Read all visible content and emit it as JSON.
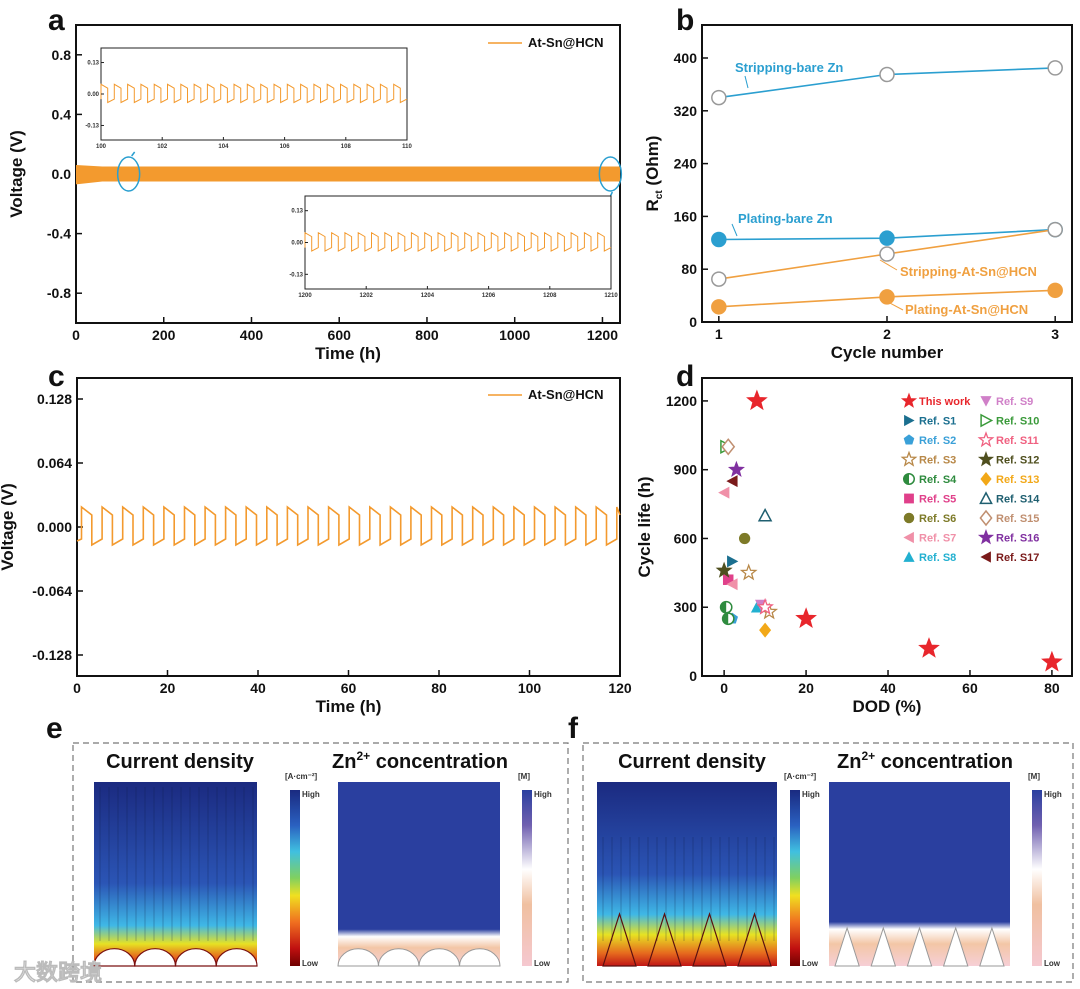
{
  "panel_labels": {
    "a": "a",
    "b": "b",
    "c": "c",
    "d": "d",
    "e": "e",
    "f": "f"
  },
  "watermark": "大数跨境",
  "chart_data": [
    {
      "id": "a",
      "type": "line",
      "xlabel": "Time (h)",
      "ylabel": "Voltage (V)",
      "xlim": [
        0,
        1240
      ],
      "ylim": [
        -1.0,
        1.0
      ],
      "xticks": [
        0,
        200,
        400,
        600,
        800,
        1000,
        1200
      ],
      "xtick_labels": [
        "0",
        "200",
        "400",
        "600",
        "800",
        "1000",
        "1200"
      ],
      "yticks": [
        -0.8,
        -0.4,
        0.0,
        0.4,
        0.8
      ],
      "ytick_labels": [
        "-0.8",
        "-0.4",
        "0.0",
        "0.4",
        "0.8"
      ],
      "legend": "At-Sn@HCN",
      "legend_position": "top-right",
      "series_color": "#f39a2e",
      "highlight_color": "#2a9fd0",
      "voltage_band": [
        -0.05,
        0.05
      ],
      "highlight_times": [
        120,
        1218
      ],
      "insets": [
        {
          "xlim": [
            100,
            110
          ],
          "ylim": [
            -0.19,
            0.19
          ],
          "xticks": [
            100,
            102,
            104,
            106,
            108,
            110
          ],
          "xtick_labels": [
            "100",
            "102",
            "104",
            "106",
            "108",
            "110"
          ],
          "yticks": [
            0.13,
            0.0,
            -0.13
          ],
          "ytick_labels": [
            "0.13",
            "0.00",
            "-0.13"
          ],
          "cycles": 23,
          "high": 0.04,
          "low": -0.035
        },
        {
          "xlim": [
            1200,
            1210
          ],
          "ylim": [
            -0.19,
            0.19
          ],
          "xticks": [
            1200,
            1202,
            1204,
            1206,
            1208,
            1210
          ],
          "xtick_labels": [
            "1200",
            "1202",
            "1204",
            "1206",
            "1208",
            "1210"
          ],
          "yticks": [
            0.13,
            0.0,
            -0.13
          ],
          "ytick_labels": [
            "0.13",
            "0.00",
            "-0.13"
          ],
          "cycles": 23,
          "high": 0.04,
          "low": -0.035
        }
      ]
    },
    {
      "id": "b",
      "type": "line",
      "xlabel": "Cycle number",
      "ylabel_main": "R",
      "ylabel_sub": "ct",
      "ylabel_unit": " (Ohm)",
      "xlim": [
        0.9,
        3.1
      ],
      "ylim": [
        0,
        450
      ],
      "xticks": [
        1,
        2,
        3
      ],
      "xtick_labels": [
        "1",
        "2",
        "3"
      ],
      "yticks": [
        0,
        80,
        160,
        240,
        320,
        400
      ],
      "ytick_labels": [
        "0",
        "80",
        "160",
        "240",
        "320",
        "400"
      ],
      "x": [
        1,
        2,
        3
      ],
      "series": [
        {
          "name": "Stripping-bare Zn",
          "values": [
            340,
            375,
            385
          ],
          "color": "#2b9fd0",
          "filled": false
        },
        {
          "name": "Plating-bare Zn",
          "values": [
            125,
            127,
            140
          ],
          "color": "#2b9fd0",
          "filled": true
        },
        {
          "name": "Stripping-At-Sn@HCN",
          "values": [
            65,
            103,
            140
          ],
          "color": "#f0a040",
          "filled": false
        },
        {
          "name": "Plating-At-Sn@HCN",
          "values": [
            23,
            38,
            48
          ],
          "color": "#f0a040",
          "filled": true
        }
      ]
    },
    {
      "id": "c",
      "type": "line",
      "xlabel": "Time (h)",
      "ylabel": "Voltage (V)",
      "xlim": [
        0,
        120
      ],
      "ylim": [
        -0.149,
        0.149
      ],
      "xticks": [
        0,
        20,
        40,
        60,
        80,
        100,
        120
      ],
      "xtick_labels": [
        "0",
        "20",
        "40",
        "60",
        "80",
        "100",
        "120"
      ],
      "yticks": [
        -0.128,
        -0.064,
        0.0,
        0.064,
        0.128
      ],
      "ytick_labels": [
        "-0.128",
        "-0.064",
        "0.000",
        "0.064",
        "0.128"
      ],
      "legend": "At-Sn@HCN",
      "legend_position": "top-right",
      "series_color": "#f39a2e",
      "start": 1,
      "period": 4.55,
      "high": 0.02,
      "sag_high": 0.008,
      "low": -0.018,
      "sag_low": 0.006
    },
    {
      "id": "d",
      "type": "scatter",
      "xlabel": "DOD (%)",
      "ylabel": "Cycle life (h)",
      "xlim": [
        -5.4,
        84.9
      ],
      "ylim": [
        0,
        1300
      ],
      "xticks": [
        0,
        20,
        40,
        60,
        80
      ],
      "xtick_labels": [
        "0",
        "20",
        "40",
        "60",
        "80"
      ],
      "yticks": [
        0,
        300,
        600,
        900,
        1200
      ],
      "ytick_labels": [
        "0",
        "300",
        "600",
        "900",
        "1200"
      ],
      "legend_position": "top-right",
      "series": [
        {
          "name": "This work",
          "glyph": "★",
          "color": "#e8262c",
          "points": [
            [
              8,
              1200
            ],
            [
              20,
              250
            ],
            [
              50,
              120
            ],
            [
              80,
              60
            ]
          ]
        },
        {
          "name": "Ref. S1",
          "glyph": "▶",
          "color": "#1b6f8f",
          "points": [
            [
              2,
              500
            ]
          ]
        },
        {
          "name": "Ref. S2",
          "glyph": "⬟",
          "color": "#3aa0d8",
          "points": [
            [
              2,
              250
            ]
          ]
        },
        {
          "name": "Ref. S3",
          "glyph": "☆",
          "color": "#b88848",
          "points": [
            [
              6,
              450
            ],
            [
              11,
              280
            ]
          ]
        },
        {
          "name": "Ref. S4",
          "glyph": "◐",
          "color": "#2e8b3e",
          "points": [
            [
              0.5,
              300
            ],
            [
              1,
              250
            ]
          ]
        },
        {
          "name": "Ref. S5",
          "glyph": "■",
          "color": "#e0408a",
          "points": [
            [
              1,
              420
            ]
          ]
        },
        {
          "name": "Ref. S6",
          "glyph": "●",
          "color": "#7d7a28",
          "points": [
            [
              5,
              600
            ]
          ]
        },
        {
          "name": "Ref. S7",
          "glyph": "◀",
          "color": "#f090a8",
          "points": [
            [
              0,
              800
            ],
            [
              2,
              400
            ]
          ]
        },
        {
          "name": "Ref. S8",
          "glyph": "▲",
          "color": "#22b0d0",
          "points": [
            [
              8,
              300
            ]
          ]
        },
        {
          "name": "Ref. S9",
          "glyph": "▼",
          "color": "#d080c8",
          "points": [
            [
              9,
              310
            ]
          ]
        },
        {
          "name": "Ref. S10",
          "glyph": "▷",
          "color": "#3a9a3a",
          "points": [
            [
              0.5,
              1000
            ]
          ]
        },
        {
          "name": "Ref. S11",
          "glyph": "☆",
          "color": "#f06080",
          "points": [
            [
              10,
              300
            ]
          ]
        },
        {
          "name": "Ref. S12",
          "glyph": "★",
          "color": "#4f4f1e",
          "points": [
            [
              0,
              460
            ]
          ]
        },
        {
          "name": "Ref. S13",
          "glyph": "◆",
          "color": "#f2a818",
          "points": [
            [
              10,
              200
            ]
          ]
        },
        {
          "name": "Ref. S14",
          "glyph": "△",
          "color": "#1f5f70",
          "points": [
            [
              10,
              700
            ]
          ]
        },
        {
          "name": "Ref. S15",
          "glyph": "◇",
          "color": "#c08f70",
          "points": [
            [
              1,
              1000
            ]
          ]
        },
        {
          "name": "Ref. S16",
          "glyph": "★",
          "color": "#8030a0",
          "points": [
            [
              3,
              900
            ]
          ]
        },
        {
          "name": "Ref. S17",
          "glyph": "◀",
          "color": "#7a1a1a",
          "points": [
            [
              2,
              850
            ]
          ]
        }
      ]
    }
  ],
  "simulations": {
    "e": {
      "current_title": "Current density",
      "conc_prefix": "Zn",
      "conc_sup": "2+",
      "conc_suffix": " concentration",
      "current_unit": "[A·cm⁻²]",
      "conc_unit": "[M]",
      "high": "High",
      "low": "Low",
      "shape": "hemisphere"
    },
    "f": {
      "current_title": "Current density",
      "conc_prefix": "Zn",
      "conc_sup": "2+",
      "conc_suffix": " concentration",
      "current_unit": "[A·cm⁻²]",
      "conc_unit": "[M]",
      "high": "High",
      "low": "Low",
      "shape": "pyramid"
    }
  }
}
